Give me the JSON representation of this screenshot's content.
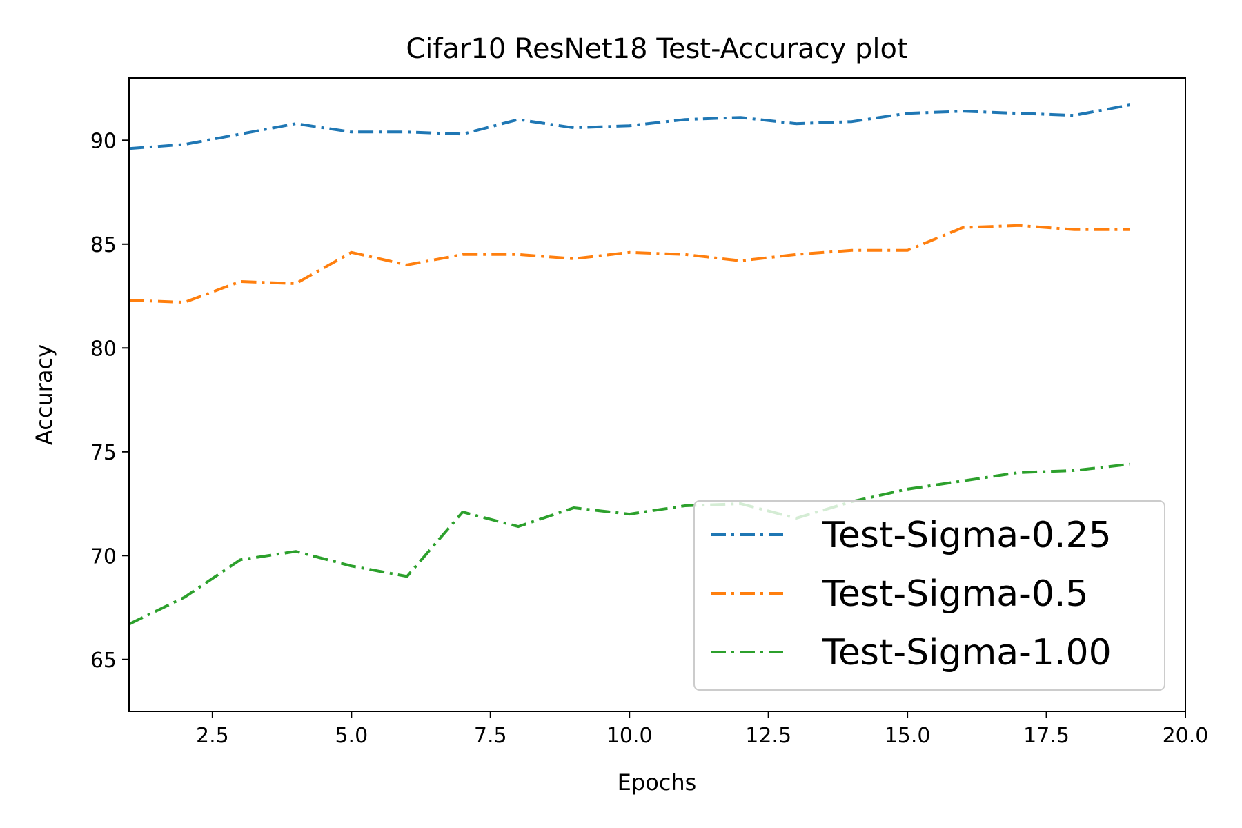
{
  "chart_data": {
    "type": "line",
    "title": "Cifar10 ResNet18 Test-Accuracy plot",
    "xlabel": "Epochs",
    "ylabel": "Accuracy",
    "xlim": [
      1,
      20
    ],
    "ylim": [
      62.5,
      93
    ],
    "xticks": [
      2.5,
      5.0,
      7.5,
      10.0,
      12.5,
      15.0,
      17.5,
      20.0
    ],
    "xtick_labels": [
      "2.5",
      "5.0",
      "7.5",
      "10.0",
      "12.5",
      "15.0",
      "17.5",
      "20.0"
    ],
    "yticks": [
      65,
      70,
      75,
      80,
      85,
      90
    ],
    "ytick_labels": [
      "65",
      "70",
      "75",
      "80",
      "85",
      "90"
    ],
    "grid": false,
    "legend_position": "lower-right",
    "line_style": "dash-dot",
    "x": [
      1,
      2,
      3,
      4,
      5,
      6,
      7,
      8,
      9,
      10,
      11,
      12,
      13,
      14,
      15,
      16,
      17,
      18,
      19
    ],
    "series": [
      {
        "name": "Test-Sigma-0.25",
        "color": "#1f77b4",
        "values": [
          89.6,
          89.8,
          90.3,
          90.8,
          90.4,
          90.4,
          90.3,
          91.0,
          90.6,
          90.7,
          91.0,
          91.1,
          90.8,
          90.9,
          91.3,
          91.4,
          91.3,
          91.2,
          91.7
        ]
      },
      {
        "name": "Test-Sigma-0.5",
        "color": "#ff7f0e",
        "values": [
          82.3,
          82.2,
          83.2,
          83.1,
          84.6,
          84.0,
          84.5,
          84.5,
          84.3,
          84.6,
          84.5,
          84.2,
          84.5,
          84.7,
          84.7,
          85.8,
          85.9,
          85.7,
          85.7
        ]
      },
      {
        "name": "Test-Sigma-1.00",
        "color": "#2ca02c",
        "values": [
          66.7,
          68.0,
          69.8,
          70.2,
          69.5,
          69.0,
          72.1,
          71.4,
          72.3,
          72.0,
          72.4,
          72.5,
          71.8,
          72.6,
          73.2,
          73.6,
          74.0,
          74.1,
          74.4
        ]
      }
    ]
  }
}
